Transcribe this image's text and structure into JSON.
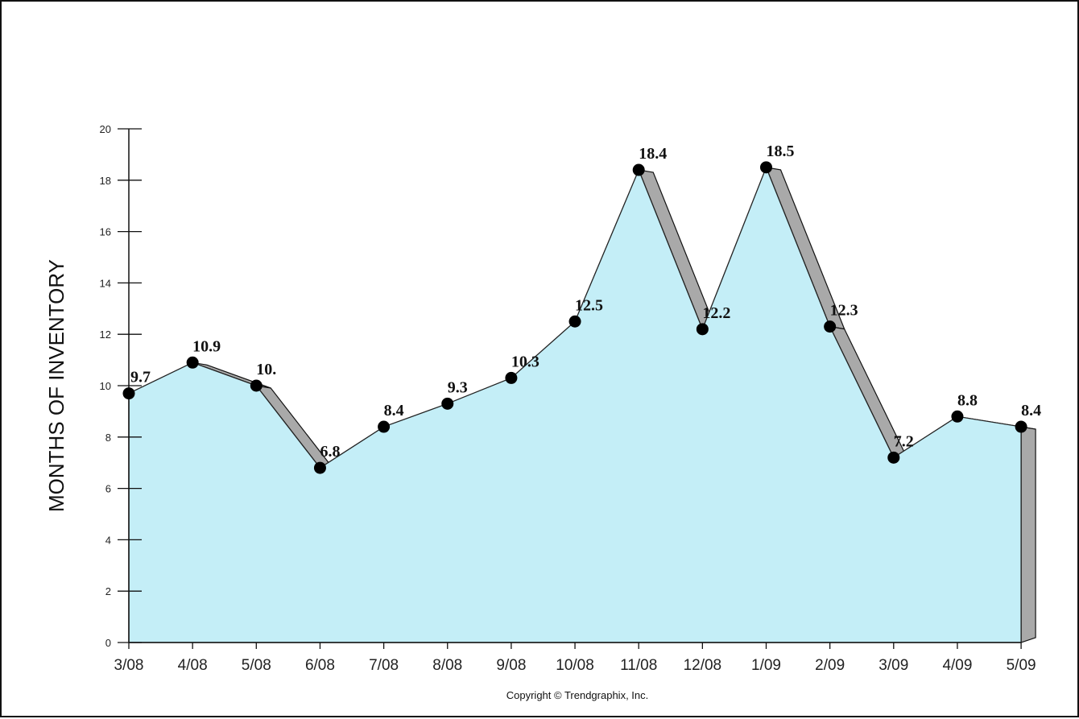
{
  "chart_data": {
    "type": "area",
    "ylabel": "MONTHS OF INVENTORY",
    "xlabel": "",
    "ylim": [
      0,
      20
    ],
    "yticks": [
      0,
      2,
      4,
      6,
      8,
      10,
      12,
      14,
      16,
      18,
      20
    ],
    "categories": [
      "3/08",
      "4/08",
      "5/08",
      "6/08",
      "7/08",
      "8/08",
      "9/08",
      "10/08",
      "11/08",
      "12/08",
      "1/09",
      "2/09",
      "3/09",
      "4/09",
      "5/09"
    ],
    "values": [
      9.7,
      10.9,
      10.0,
      6.8,
      8.4,
      9.3,
      10.3,
      12.5,
      18.4,
      12.2,
      18.5,
      12.3,
      7.2,
      8.8,
      8.4
    ],
    "data_labels": [
      "9.7",
      "10.9",
      "10.",
      "6.8",
      "8.4",
      "9.3",
      "10.3",
      "12.5",
      "18.4",
      "12.2",
      "18.5",
      "12.3",
      "7.2",
      "8.8",
      "8.4"
    ],
    "grid": false,
    "legend": "none",
    "fill_color": "#c4eef7",
    "side_color": "#a9a9a9",
    "marker_color": "#000000",
    "copyright": "Copyright © Trendgraphix, Inc."
  }
}
